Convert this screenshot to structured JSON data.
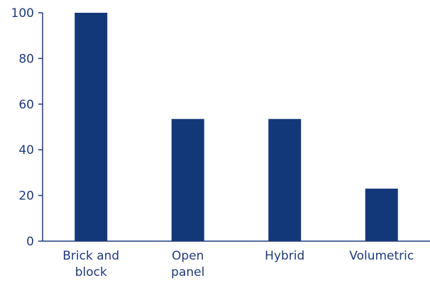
{
  "chart_data": {
    "type": "bar",
    "title": "",
    "xlabel": "",
    "ylabel": "",
    "categories": [
      [
        "Brick and",
        "block"
      ],
      [
        "Open",
        "panel"
      ],
      [
        "Hybrid"
      ],
      [
        "Volumetric"
      ]
    ],
    "values": [
      100,
      53.5,
      53.5,
      23
    ],
    "ylim": [
      0,
      100
    ],
    "yticks": [
      0,
      20,
      40,
      60,
      80,
      100
    ],
    "grid": false,
    "legend": "none",
    "colors": {
      "bar": "#13387a",
      "axis": "#1f3b7a",
      "text": "#1f3b7a"
    }
  }
}
